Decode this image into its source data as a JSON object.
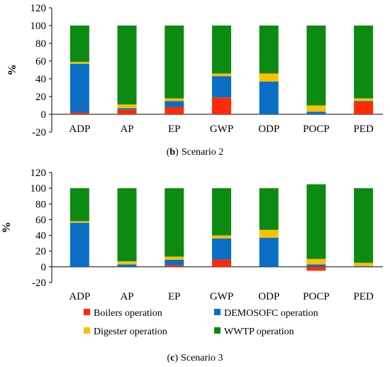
{
  "colors": {
    "boilers": "#ff2a06",
    "demosofc": "#0a6ec7",
    "digester": "#ffc000",
    "wwtp": "#0c8a12"
  },
  "legend": [
    {
      "key": "boilers",
      "label": "Boilers operation"
    },
    {
      "key": "demosofc",
      "label": "DEMOSOFC operation"
    },
    {
      "key": "digester",
      "label": "Digester operation"
    },
    {
      "key": "wwtp",
      "label": "WWTP operation"
    }
  ],
  "chart_data": [
    {
      "type": "bar",
      "stacked": true,
      "caption_prefix": "(b)",
      "caption_text": "Scenario 2",
      "ylabel": "%",
      "ylim": [
        -20,
        120
      ],
      "yticks": [
        -20,
        0,
        20,
        40,
        60,
        80,
        100,
        120
      ],
      "categories": [
        "ADP",
        "AP",
        "EP",
        "GWP",
        "ODP",
        "POCP",
        "PED"
      ],
      "series": [
        {
          "name": "Boilers operation",
          "key": "boilers",
          "values": [
            2,
            5,
            8,
            19,
            0,
            0,
            14
          ]
        },
        {
          "name": "DEMOSOFC operation",
          "key": "demosofc",
          "values": [
            55,
            2,
            7,
            24,
            37,
            3,
            1
          ]
        },
        {
          "name": "Digester operation",
          "key": "digester",
          "values": [
            2,
            4,
            3,
            3,
            9,
            7,
            3
          ]
        },
        {
          "name": "WWTP operation",
          "key": "wwtp",
          "values": [
            41,
            89,
            82,
            54,
            54,
            90,
            82
          ]
        }
      ]
    },
    {
      "type": "bar",
      "stacked": true,
      "caption_prefix": "(c)",
      "caption_text": "Scenario 3",
      "ylabel": "%",
      "ylim": [
        -20,
        120
      ],
      "yticks": [
        -20,
        0,
        20,
        40,
        60,
        80,
        100,
        120
      ],
      "categories": [
        "ADP",
        "AP",
        "EP",
        "GWP",
        "ODP",
        "POCP",
        "PED"
      ],
      "series": [
        {
          "name": "Boilers operation",
          "key": "boilers",
          "values": [
            0,
            0,
            2,
            9,
            0,
            -5,
            0
          ]
        },
        {
          "name": "DEMOSOFC operation",
          "key": "demosofc",
          "values": [
            56,
            3,
            7,
            27,
            37,
            3,
            1
          ]
        },
        {
          "name": "Digester operation",
          "key": "digester",
          "values": [
            2,
            4,
            4,
            4,
            10,
            7,
            4
          ]
        },
        {
          "name": "WWTP operation",
          "key": "wwtp",
          "values": [
            42,
            93,
            87,
            60,
            53,
            95,
            95
          ]
        }
      ]
    }
  ]
}
